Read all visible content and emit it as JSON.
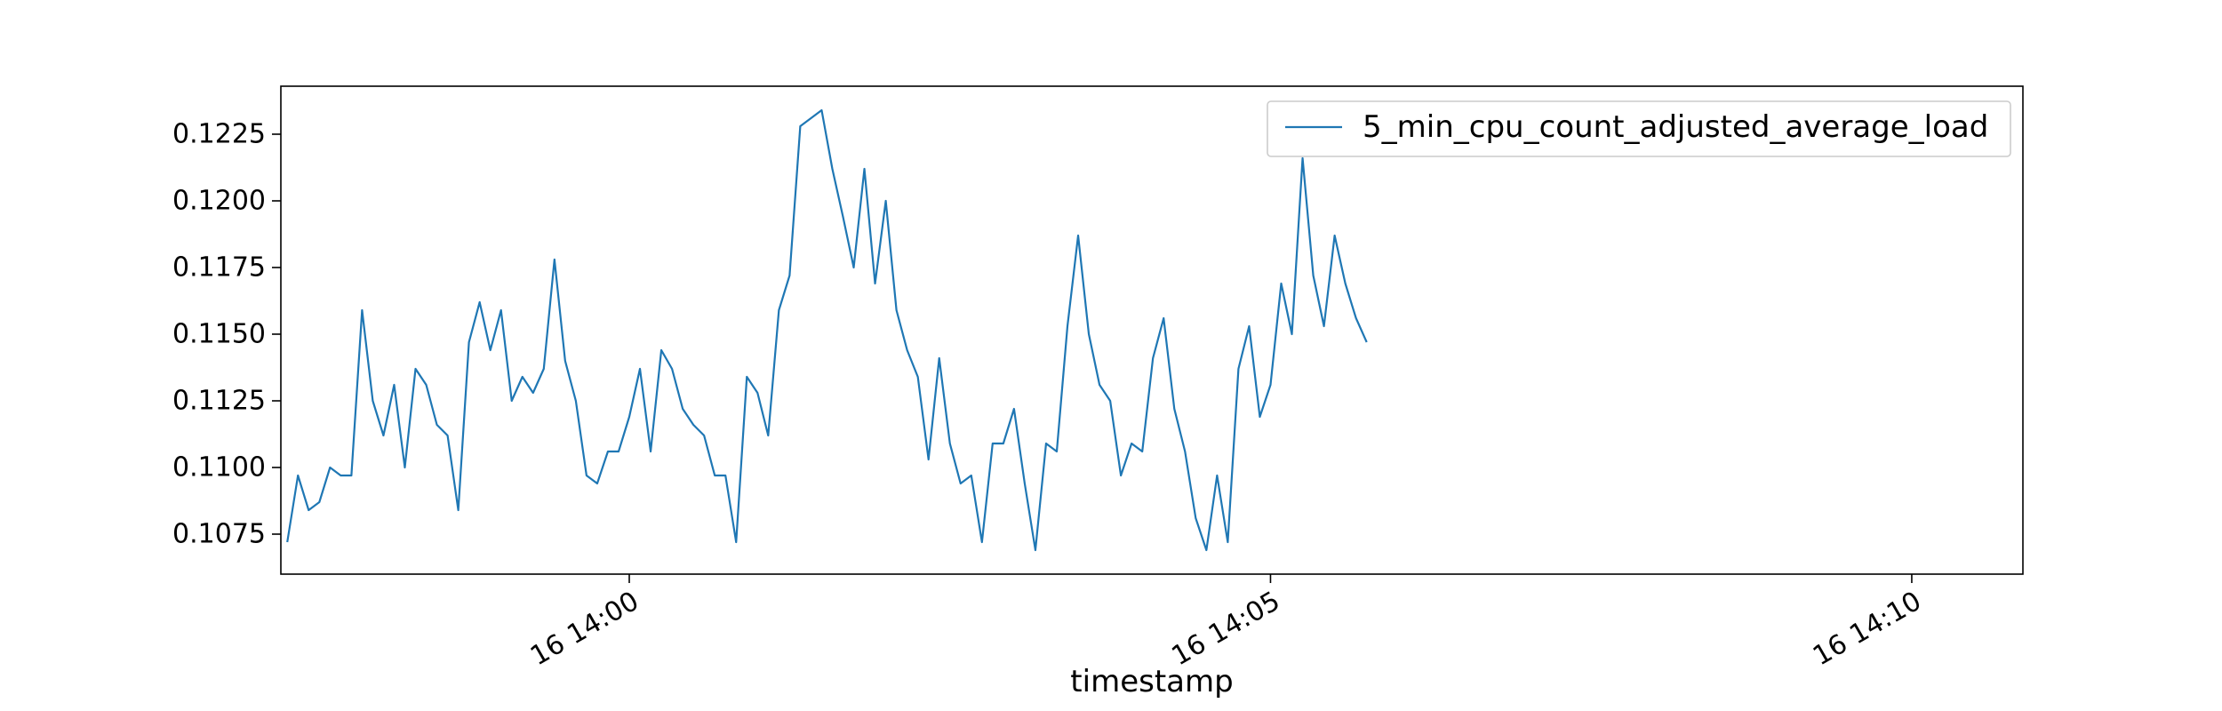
{
  "chart_data": {
    "type": "line",
    "title": "",
    "xlabel": "timestamp",
    "ylabel": "",
    "x_start": "2023-07-16 13:57:20",
    "x_step_seconds": 5,
    "xlim": [
      "2023-07-16 13:57:17",
      "2023-07-16 14:10:52"
    ],
    "x_ticks": [
      "16 14:00",
      "16 14:05",
      "16 14:10"
    ],
    "ylim": [
      0.106,
      0.1243
    ],
    "y_ticks": [
      "0.1075",
      "0.1100",
      "0.1125",
      "0.1150",
      "0.1175",
      "0.1200",
      "0.1225"
    ],
    "grid": false,
    "legend": {
      "position": "top-right",
      "entries": [
        "5_min_cpu_count_adjusted_average_load"
      ]
    },
    "colors": {
      "series": "#1f77b4",
      "axes": "#000000",
      "legend_border": "#cccccc"
    },
    "series": [
      {
        "name": "5_min_cpu_count_adjusted_average_load",
        "values": [
          0.1072,
          0.1097,
          0.1084,
          0.1087,
          0.11,
          0.1097,
          0.1097,
          0.1159,
          0.1125,
          0.1112,
          0.1131,
          0.11,
          0.1137,
          0.1131,
          0.1116,
          0.1112,
          0.1084,
          0.1147,
          0.1162,
          0.1144,
          0.1159,
          0.1125,
          0.1134,
          0.1128,
          0.1137,
          0.1178,
          0.114,
          0.1125,
          0.1097,
          0.1094,
          0.1106,
          0.1106,
          0.1119,
          0.1137,
          0.1106,
          0.1144,
          0.1137,
          0.1122,
          0.1116,
          0.1112,
          0.1097,
          0.1097,
          0.1072,
          0.1134,
          0.1128,
          0.1112,
          0.1159,
          0.1172,
          0.1228,
          0.1231,
          0.1234,
          0.1212,
          0.1194,
          0.1175,
          0.1212,
          0.1169,
          0.12,
          0.1159,
          0.1144,
          0.1134,
          0.1103,
          0.1141,
          0.1109,
          0.1094,
          0.1097,
          0.1072,
          0.1109,
          0.1109,
          0.1122,
          0.1094,
          0.1069,
          0.1109,
          0.1106,
          0.1153,
          0.1187,
          0.115,
          0.1131,
          0.1125,
          0.1097,
          0.1109,
          0.1106,
          0.1141,
          0.1156,
          0.1122,
          0.1106,
          0.1081,
          0.1069,
          0.1097,
          0.1072,
          0.1137,
          0.1153,
          0.1119,
          0.1131,
          0.1169,
          0.115,
          0.1216,
          0.1172,
          0.1153,
          0.1187,
          0.1169,
          0.1156,
          0.1147
        ]
      }
    ]
  }
}
